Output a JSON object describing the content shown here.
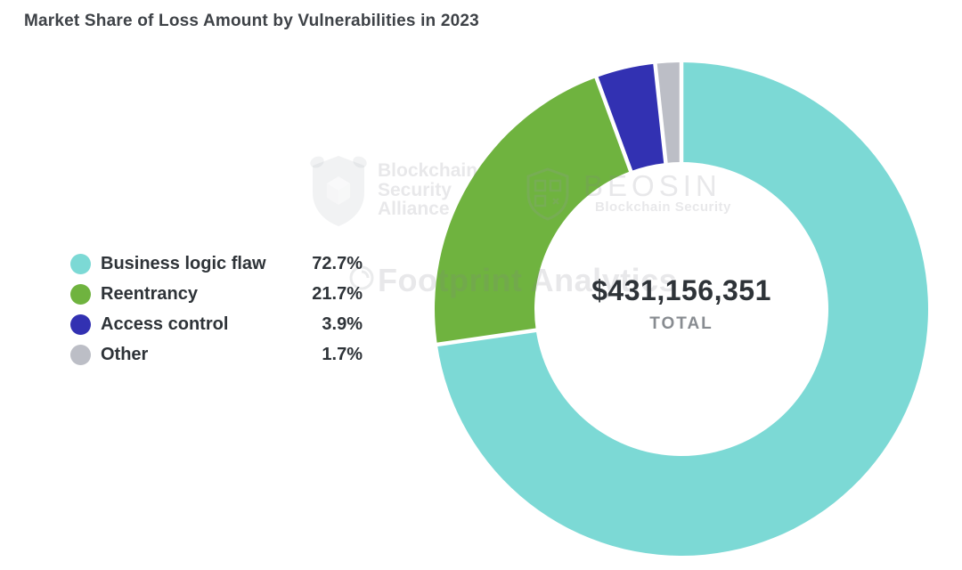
{
  "chart_data": {
    "type": "pie",
    "donut": true,
    "title": "Market Share of Loss Amount by Vulnerabilities in 2023",
    "legend_position": "left",
    "direction": "clockwise",
    "start_angle_deg": 0,
    "series": [
      {
        "name": "Business logic flaw",
        "value": 72.7,
        "display": "72.7%",
        "color": "#7CD9D5"
      },
      {
        "name": "Reentrancy",
        "value": 21.7,
        "display": "21.7%",
        "color": "#6FB33F"
      },
      {
        "name": "Access control",
        "value": 3.9,
        "display": "3.9%",
        "color": "#3231B2"
      },
      {
        "name": "Other",
        "value": 1.7,
        "display": "1.7%",
        "color": "#BCBEC6"
      }
    ],
    "center_label": {
      "value": "$431,156,351",
      "caption": "TOTAL"
    },
    "separator_color": "#ffffff"
  },
  "watermarks": {
    "alliance": {
      "line1": "Blockchain",
      "line2": "Security",
      "line3": "Alliance"
    },
    "beosin": {
      "name": "BEOSIN",
      "subtitle": "Blockchain Security"
    },
    "footprint": {
      "text": "Footprint Analytics"
    }
  }
}
